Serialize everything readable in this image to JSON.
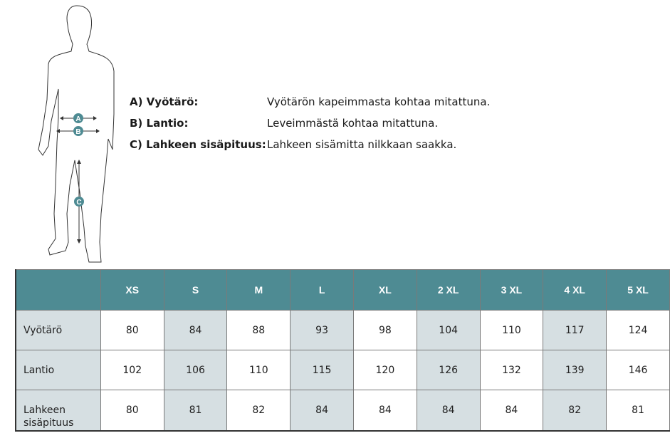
{
  "figure": {
    "markers": [
      "A",
      "B",
      "C"
    ],
    "accent_color": "#4e8b93"
  },
  "legend": [
    {
      "label": "A) Vyötärö:",
      "desc": "Vyötärön kapeimmasta kohtaa mitattuna."
    },
    {
      "label": "B) Lantio:",
      "desc": "Leveimmästä kohtaa mitattuna."
    },
    {
      "label": "C) Lahkeen sisäpituus:",
      "desc": "Lahkeen sisämitta nilkkaan saakka."
    }
  ],
  "table": {
    "header_color": "#4e8b93",
    "shade_color": "#d6dfe2",
    "sizes": [
      "XS",
      "S",
      "M",
      "L",
      "XL",
      "2 XL",
      "3 XL",
      "4 XL",
      "5 XL"
    ],
    "rows": [
      {
        "label": "Vyötärö",
        "values": [
          "80",
          "84",
          "88",
          "93",
          "98",
          "104",
          "110",
          "117",
          "124"
        ]
      },
      {
        "label": "Lantio",
        "values": [
          "102",
          "106",
          "110",
          "115",
          "120",
          "126",
          "132",
          "139",
          "146"
        ]
      },
      {
        "label": "Lahkeen sisäpituus",
        "values": [
          "80",
          "81",
          "82",
          "84",
          "84",
          "84",
          "84",
          "82",
          "81"
        ]
      }
    ]
  }
}
